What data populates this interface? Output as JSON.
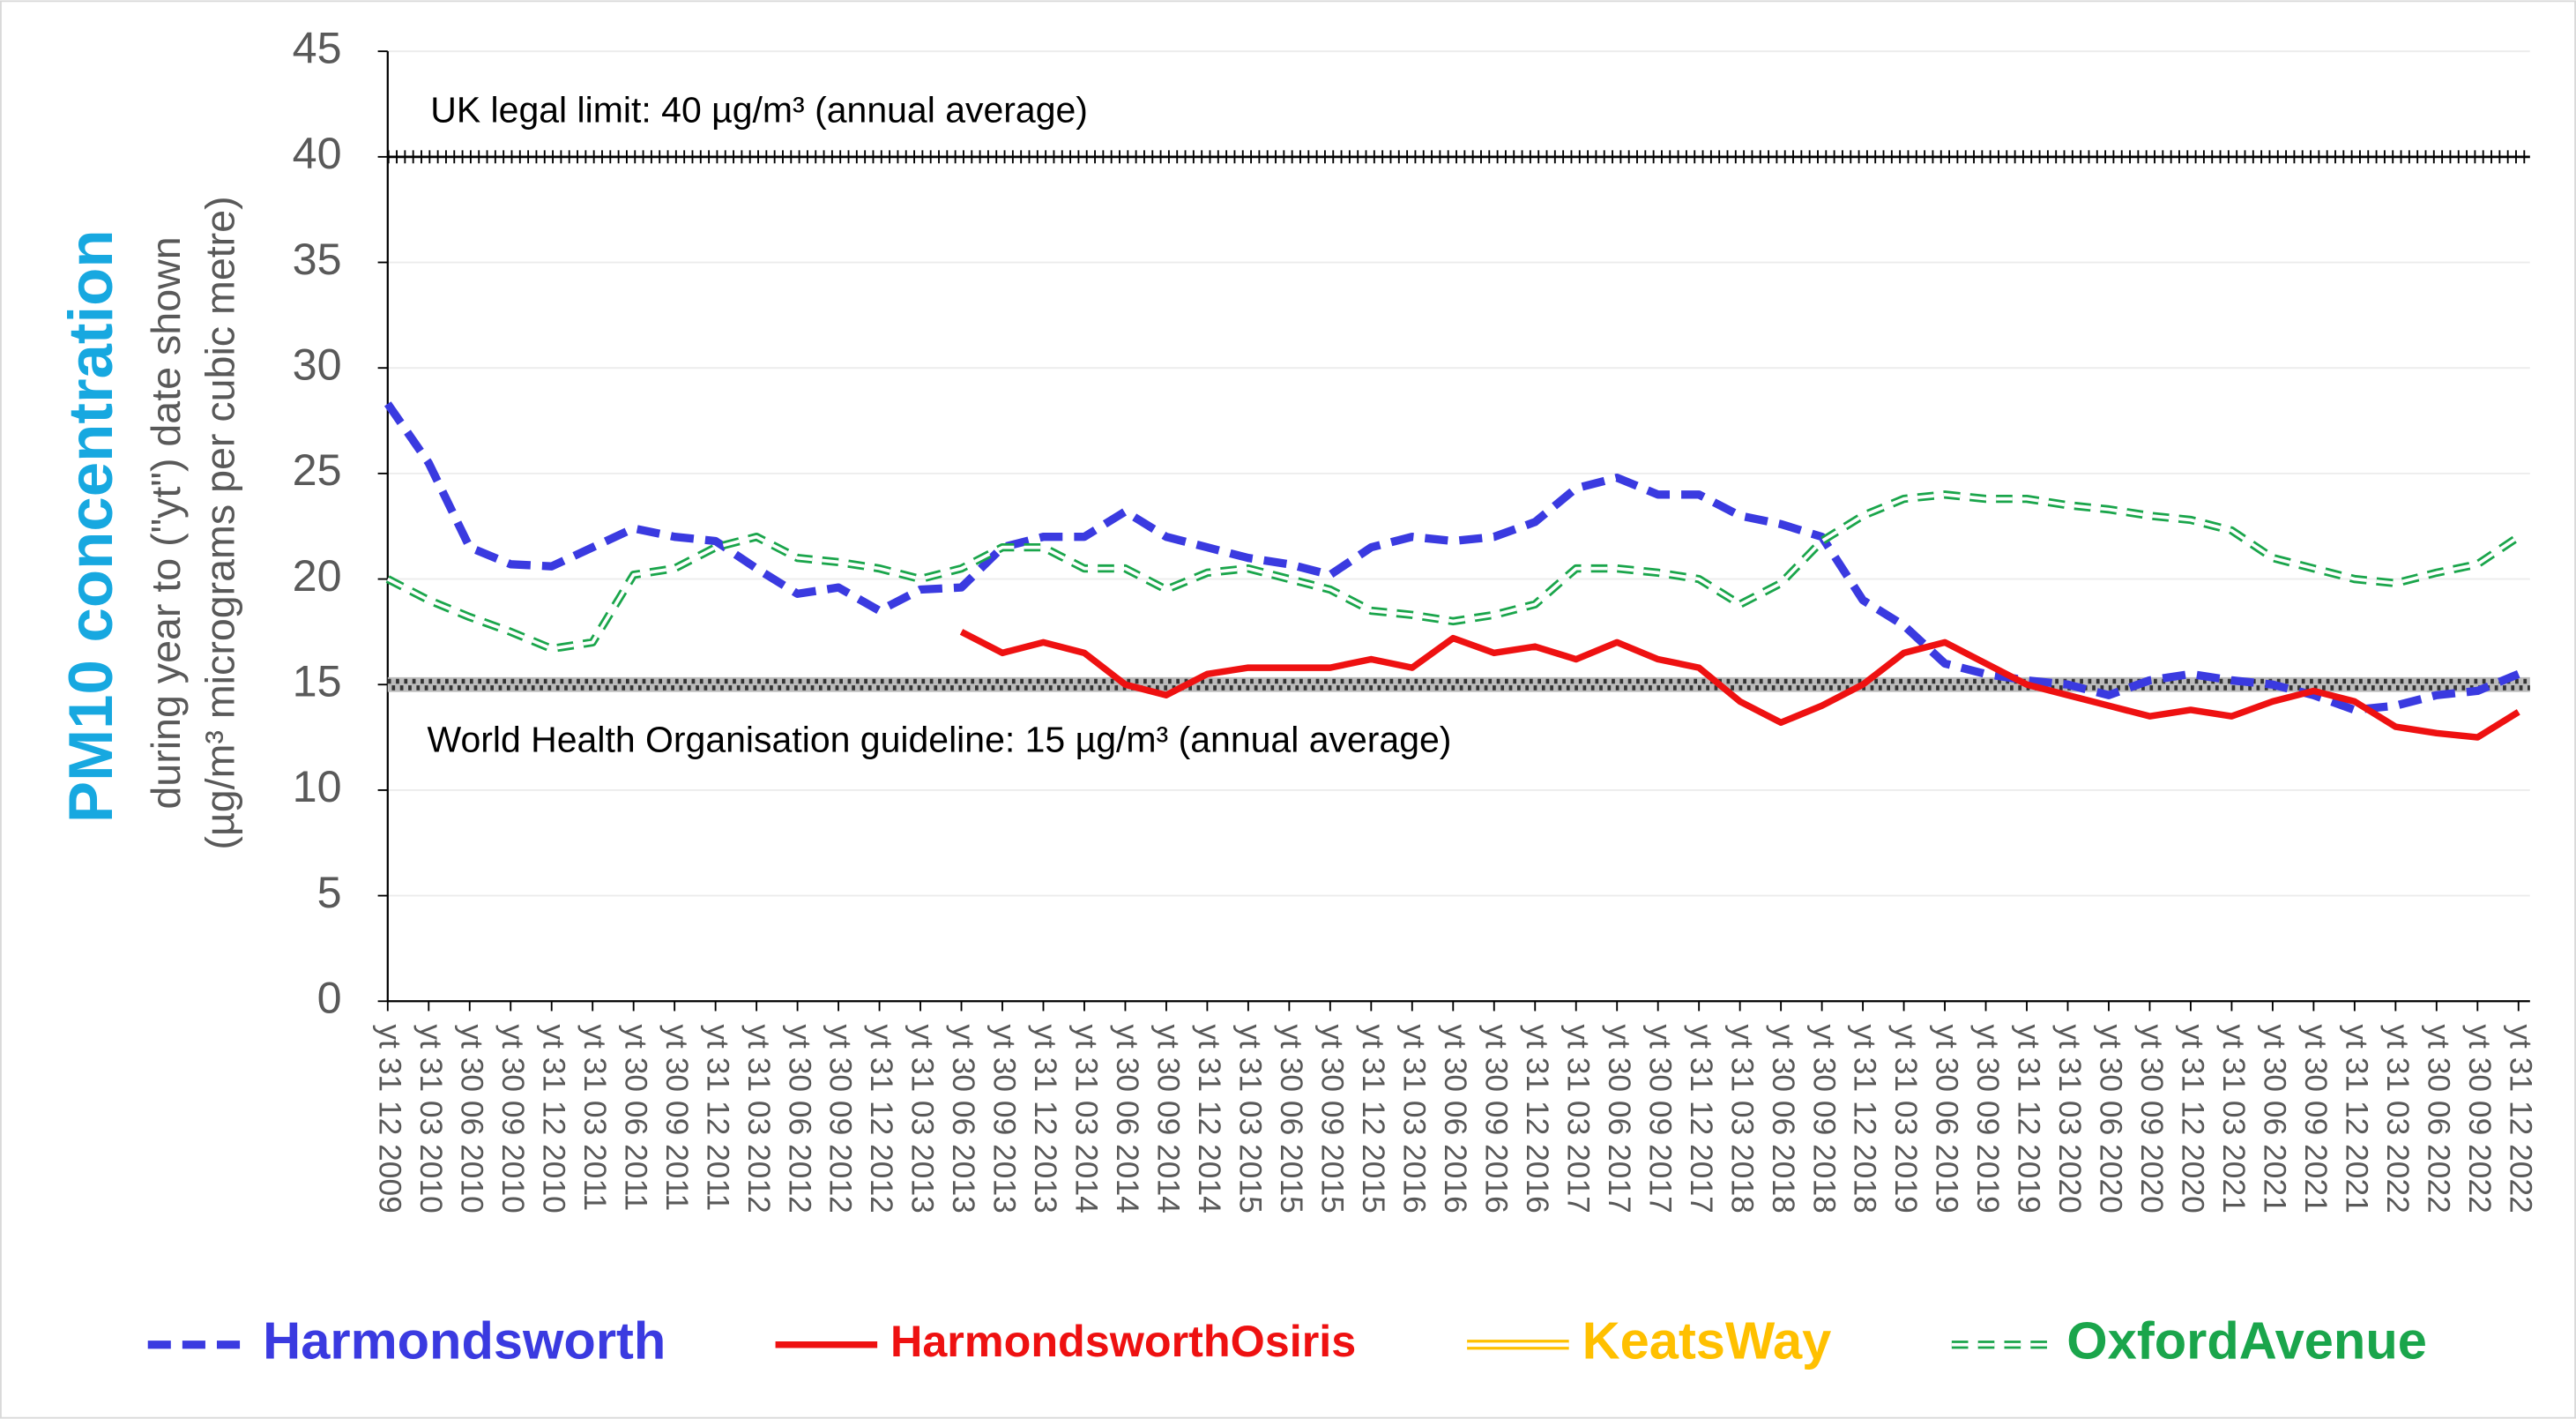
{
  "chart_data": {
    "type": "line",
    "ylabel": "PM10 concentration",
    "ylabel_lines": [
      "during year to (\"yt\") date shown",
      "(µg/m³ micrograms per cubic metre)"
    ],
    "categories": [
      "yt 31 12 2009",
      "yt 31 03 2010",
      "yt 30 06 2010",
      "yt 30 09 2010",
      "yt 31 12 2010",
      "yt 31 03 2011",
      "yt 30 06 2011",
      "yt 30 09 2011",
      "yt 31 12 2011",
      "yt 31 03 2012",
      "yt 30 06 2012",
      "yt 30 09 2012",
      "yt 31 12 2012",
      "yt 31 03 2013",
      "yt 30 06 2013",
      "yt 30 09 2013",
      "yt 31 12 2013",
      "yt 31 03 2014",
      "yt 30 06 2014",
      "yt 30 09 2014",
      "yt 31 12 2014",
      "yt 31 03 2015",
      "yt 30 06 2015",
      "yt 30 09 2015",
      "yt 31 12 2015",
      "yt 31 03 2016",
      "yt 30 06 2016",
      "yt 30 09 2016",
      "yt 31 12 2016",
      "yt 31 03 2017",
      "yt 30 06 2017",
      "yt 30 09 2017",
      "yt 31 12 2017",
      "yt 31 03 2018",
      "yt 30 06 2018",
      "yt 30 09 2018",
      "yt 31 12 2018",
      "yt 31 03 2019",
      "yt 30 06 2019",
      "yt 30 09 2019",
      "yt 31 12 2019",
      "yt 31 03 2020",
      "yt 30 06 2020",
      "yt 30 09 2020",
      "yt 31 12 2020",
      "yt 31 03 2021",
      "yt 30 06 2021",
      "yt 30 09 2021",
      "yt 31 12 2021",
      "yt 31 03 2022",
      "yt 30 06 2022",
      "yt 30 09 2022",
      "yt 31 12 2022"
    ],
    "series": [
      {
        "name": "Harmondsworth",
        "color": "#3a3ae0",
        "style": "dashed",
        "values": [
          28.3,
          25.5,
          21.5,
          20.7,
          20.6,
          21.5,
          22.4,
          22.0,
          21.8,
          20.5,
          19.3,
          19.6,
          18.5,
          19.5,
          19.6,
          21.5,
          22.0,
          22.0,
          23.2,
          22.0,
          21.5,
          21.0,
          20.7,
          20.2,
          21.5,
          22.0,
          21.8,
          22.0,
          22.7,
          24.3,
          24.8,
          24.0,
          24.0,
          23.0,
          22.6,
          22.0,
          19.0,
          17.8,
          16.0,
          15.5,
          15.2,
          15.0,
          14.5,
          15.2,
          15.5,
          15.2,
          15.0,
          14.5,
          13.8,
          14.0,
          14.5,
          14.7,
          15.5
        ]
      },
      {
        "name": "HarmondsworthOsiris",
        "color": "#ee1111",
        "style": "solid",
        "values": [
          null,
          null,
          null,
          null,
          null,
          null,
          null,
          null,
          null,
          null,
          null,
          null,
          null,
          null,
          17.5,
          16.5,
          17.0,
          16.5,
          15.0,
          14.5,
          15.5,
          15.8,
          15.8,
          15.8,
          16.2,
          15.8,
          17.2,
          16.5,
          16.8,
          16.2,
          17.0,
          16.2,
          15.8,
          14.2,
          13.2,
          14.0,
          15.0,
          16.5,
          17.0,
          16.0,
          15.0,
          14.5,
          14.0,
          13.5,
          13.8,
          13.5,
          14.2,
          14.7,
          14.2,
          13.0,
          12.7,
          12.5,
          13.7
        ]
      },
      {
        "name": "KeatsWay",
        "color": "#ffc000",
        "style": "double",
        "values": [
          null,
          null,
          null,
          null,
          null,
          null,
          null,
          null,
          null,
          null,
          null,
          null,
          null,
          null,
          null,
          null,
          null,
          null,
          null,
          null,
          null,
          null,
          null,
          null,
          null,
          null,
          null,
          null,
          null,
          null,
          null,
          null,
          null,
          null,
          null,
          null,
          null,
          null,
          null,
          null,
          null,
          null,
          null,
          null,
          null,
          null,
          null,
          null,
          null,
          null,
          null,
          null,
          null
        ]
      },
      {
        "name": "OxfordAvenue",
        "color": "#1aa54b",
        "style": "double-dashed",
        "values": [
          20.0,
          19.0,
          18.2,
          17.5,
          16.7,
          17.0,
          20.2,
          20.5,
          21.5,
          22.0,
          21.0,
          20.8,
          20.5,
          20.0,
          20.5,
          21.5,
          21.5,
          20.5,
          20.5,
          19.5,
          20.3,
          20.5,
          20.0,
          19.5,
          18.5,
          18.3,
          18.0,
          18.3,
          18.8,
          20.5,
          20.5,
          20.3,
          20.0,
          18.8,
          19.8,
          21.8,
          23.0,
          23.8,
          24.0,
          23.8,
          23.8,
          23.5,
          23.3,
          23.0,
          22.8,
          22.3,
          21.0,
          20.5,
          20.0,
          19.8,
          20.3,
          20.7,
          22.0
        ]
      }
    ],
    "reference_lines": [
      {
        "value": 40,
        "label": "UK legal limit: 40 µg/m³ (annual average)"
      },
      {
        "value": 15,
        "label": "World Health Organisation guideline: 15 µg/m³ (annual average)"
      }
    ],
    "ylim": [
      0,
      45
    ],
    "yticks": [
      0,
      5,
      10,
      15,
      20,
      25,
      30,
      35,
      40,
      45
    ],
    "grid": true,
    "legend": "bottom"
  }
}
